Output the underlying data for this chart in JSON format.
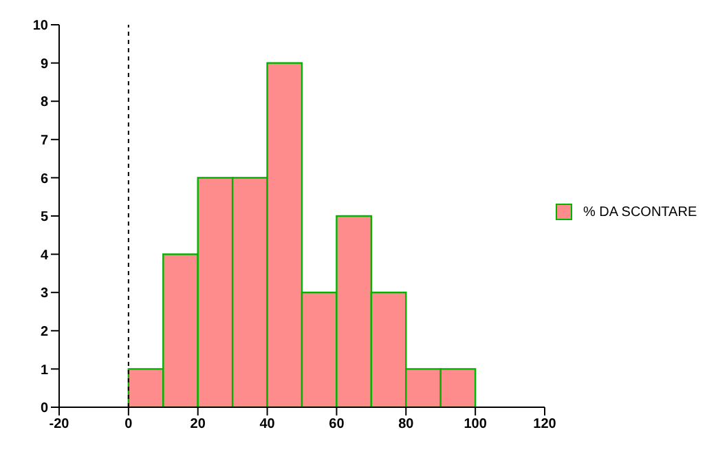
{
  "chart_data": {
    "type": "histogram",
    "bins": [
      0,
      10,
      20,
      30,
      40,
      50,
      60,
      70,
      80,
      90,
      100
    ],
    "series": [
      {
        "name": "% DA SCONTARE",
        "color": "#ff8c8c",
        "values": [
          1,
          4,
          6,
          6,
          9,
          3,
          5,
          3,
          1,
          1
        ]
      }
    ],
    "xlim": [
      -20,
      120
    ],
    "xticks": [
      -20,
      0,
      20,
      40,
      60,
      80,
      100,
      120
    ],
    "ylim": [
      0,
      10
    ],
    "yticks": [
      0,
      1,
      2,
      3,
      4,
      5,
      6,
      7,
      8,
      9,
      10
    ],
    "ref_lines": [
      {
        "axis": "x",
        "value": 0,
        "line_style": "dashed",
        "color": "#000000"
      }
    ],
    "grid": false,
    "legend": "right"
  }
}
